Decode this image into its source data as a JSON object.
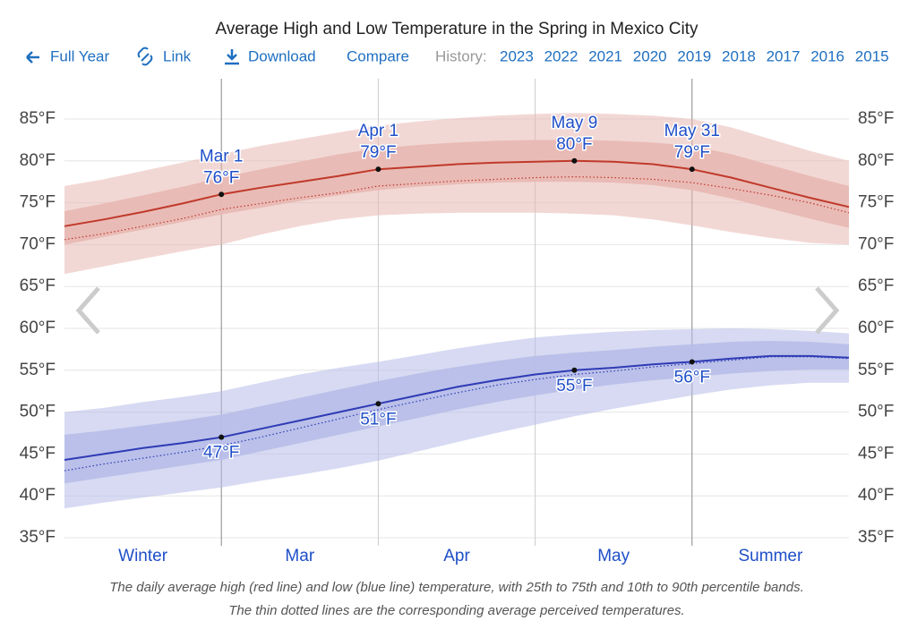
{
  "nav": {
    "links": [
      "Full Year",
      "Link",
      "Download",
      "Compare"
    ],
    "history_label": "History:",
    "years": [
      "2023",
      "2022",
      "2021",
      "2020",
      "2019",
      "2018",
      "2017",
      "2016",
      "2015"
    ]
  },
  "chart_data": {
    "type": "line",
    "title": "Average High and Low Temperature in the Spring in Mexico City",
    "categories": [
      null,
      null,
      null,
      null,
      "Mar 1",
      null,
      null,
      null,
      "Apr 1",
      null,
      null,
      null,
      null,
      "May 9",
      null,
      null,
      "May 31",
      null,
      null,
      null,
      null
    ],
    "x_regions": [
      "Winter",
      "Mar",
      "Apr",
      "May",
      "Summer"
    ],
    "ylim": [
      35,
      87.5
    ],
    "yticks": [
      {
        "value": 35,
        "label": "35°F"
      },
      {
        "value": 40,
        "label": "40°F"
      },
      {
        "value": 45,
        "label": "45°F"
      },
      {
        "value": 50,
        "label": "50°F"
      },
      {
        "value": 55,
        "label": "55°F"
      },
      {
        "value": 60,
        "label": "60°F"
      },
      {
        "value": 65,
        "label": "65°F"
      },
      {
        "value": 70,
        "label": "70°F"
      },
      {
        "value": 75,
        "label": "75°F"
      },
      {
        "value": 80,
        "label": "80°F"
      },
      {
        "value": 85,
        "label": "85°F"
      }
    ],
    "grid": true,
    "series": [
      {
        "color": "#c0392b",
        "band_color": "#e8b8b2",
        "label_position": "above",
        "values": [
          72.2,
          73.0,
          73.9,
          74.9,
          76,
          76.8,
          77.5,
          78.2,
          79,
          79.3,
          79.6,
          79.8,
          79.9,
          80,
          79.9,
          79.6,
          79,
          78.0,
          76.8,
          75.6,
          74.5
        ],
        "value_labels": [
          null,
          null,
          null,
          null,
          "76°F",
          null,
          null,
          null,
          "79°F",
          null,
          null,
          null,
          null,
          "80°F",
          null,
          null,
          "79°F",
          null,
          null,
          null,
          null
        ],
        "perceived": [
          70.6,
          71.3,
          72.2,
          73.1,
          74.2,
          74.9,
          75.6,
          76.2,
          77.0,
          77.3,
          77.6,
          77.8,
          78.0,
          78.1,
          78.0,
          77.8,
          77.4,
          76.7,
          75.9,
          75.0,
          73.8
        ],
        "p10": [
          66.5,
          67.4,
          68.3,
          69.2,
          70.0,
          71.2,
          72.2,
          73.0,
          73.5,
          73.7,
          73.8,
          73.8,
          73.8,
          73.7,
          73.5,
          73.0,
          72.3,
          71.5,
          70.8,
          70.2,
          70.0
        ],
        "p25": [
          70.0,
          70.9,
          71.8,
          72.7,
          73.6,
          74.4,
          75.2,
          75.9,
          76.5,
          76.9,
          77.2,
          77.4,
          77.5,
          77.5,
          77.4,
          77.1,
          76.5,
          75.5,
          74.3,
          73.1,
          72.0
        ],
        "p75": [
          74.0,
          74.9,
          75.9,
          76.9,
          78.0,
          79.0,
          79.9,
          80.8,
          81.5,
          81.9,
          82.2,
          82.4,
          82.5,
          82.5,
          82.4,
          82.2,
          81.8,
          80.8,
          79.5,
          78.2,
          77.0
        ],
        "p90": [
          77.0,
          77.8,
          78.8,
          79.8,
          80.8,
          81.8,
          82.6,
          83.4,
          84.2,
          84.7,
          85.1,
          85.4,
          85.6,
          85.7,
          85.6,
          85.4,
          85.0,
          84.0,
          82.6,
          81.2,
          80.0
        ]
      },
      {
        "color": "#2f3bb5",
        "band_color": "#b7bce8",
        "label_position": "below",
        "values": [
          44.3,
          45.0,
          45.7,
          46.3,
          47,
          48.0,
          49.0,
          50.0,
          51,
          52.0,
          53.0,
          53.8,
          54.5,
          55,
          55.3,
          55.7,
          56,
          56.4,
          56.7,
          56.7,
          56.5
        ],
        "value_labels": [
          null,
          null,
          null,
          null,
          "47°F",
          null,
          null,
          null,
          "51°F",
          null,
          null,
          null,
          null,
          "55°F",
          null,
          null,
          "56°F",
          null,
          null,
          null,
          null
        ],
        "perceived": [
          43.0,
          43.8,
          44.5,
          45.2,
          46.0,
          47.0,
          48.1,
          49.2,
          50.3,
          51.3,
          52.3,
          53.2,
          53.9,
          54.5,
          54.9,
          55.4,
          55.8,
          56.2,
          56.6,
          56.6,
          56.4
        ],
        "p10": [
          38.5,
          39.2,
          39.8,
          40.4,
          41.0,
          41.8,
          42.5,
          43.3,
          44.2,
          45.3,
          46.4,
          47.5,
          48.5,
          49.5,
          50.4,
          51.2,
          52.0,
          52.7,
          53.2,
          53.5,
          53.5
        ],
        "p25": [
          41.5,
          42.2,
          42.9,
          43.6,
          44.3,
          45.3,
          46.3,
          47.3,
          48.3,
          49.3,
          50.3,
          51.2,
          52.0,
          52.7,
          53.3,
          53.8,
          54.2,
          54.6,
          54.9,
          55.1,
          55.1
        ],
        "p75": [
          47.3,
          47.8,
          48.4,
          49.0,
          49.7,
          50.7,
          51.7,
          52.7,
          53.7,
          54.6,
          55.4,
          56.1,
          56.7,
          57.1,
          57.4,
          57.8,
          58.1,
          58.4,
          58.5,
          58.4,
          58.1
        ],
        "p90": [
          50.0,
          50.5,
          51.2,
          51.8,
          52.5,
          53.5,
          54.5,
          55.3,
          56.0,
          56.8,
          57.6,
          58.3,
          58.9,
          59.3,
          59.6,
          59.8,
          59.9,
          60.0,
          59.9,
          59.7,
          59.4
        ]
      }
    ]
  },
  "caption": [
    "The daily average high (red line) and low (blue line) temperature, with 25th to 75th and 10th to 90th percentile bands.",
    "The thin dotted lines are the corresponding average perceived temperatures."
  ]
}
